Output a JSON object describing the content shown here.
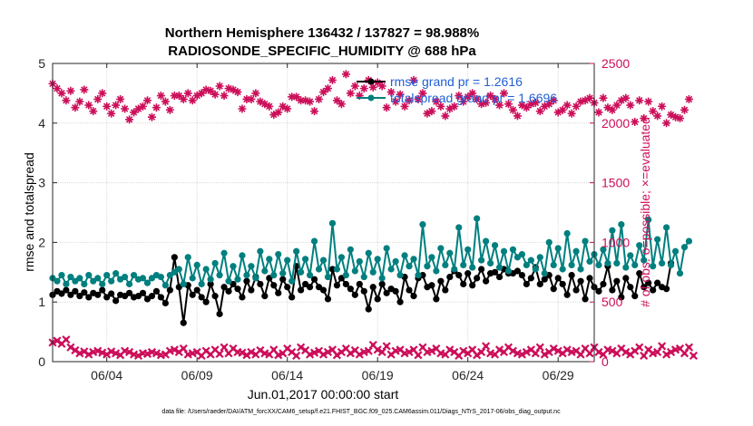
{
  "chart_data": {
    "type": "line",
    "title": "Northern Hemisphere 136432 / 137827 = 98.988%",
    "subtitle": "RADIOSONDE_SPECIFIC_HUMIDITY @ 688 hPa",
    "xlabel": "Jun.01,2017 00:00:00 start",
    "ylabel": "rmse and totalspread",
    "ylabel_right": "# of obs: o=possible; ×=evaluated",
    "footnote": "data file: /Users/raeder/DAI/ATM_forcXX/CAM6_setup/f.e21.FHIST_BGC.f09_025.CAM6assim.011/Diags_NTrS_2017-06/obs_diag_output.nc",
    "x_ticks": [
      {
        "value": 4,
        "label": "06/04"
      },
      {
        "value": 9,
        "label": "06/09"
      },
      {
        "value": 14,
        "label": "06/14"
      },
      {
        "value": 19,
        "label": "06/19"
      },
      {
        "value": 24,
        "label": "06/24"
      },
      {
        "value": 29,
        "label": "06/29"
      }
    ],
    "xlim": [
      1.0,
      31.0
    ],
    "ylim": [
      0,
      5
    ],
    "y_ticks": [
      0,
      1,
      2,
      3,
      4,
      5
    ],
    "ylim_right": [
      0,
      2500
    ],
    "y_ticks_right": [
      0,
      500,
      1000,
      1500,
      2000,
      2500
    ],
    "grid": true,
    "legend_position": "top-right",
    "x_start": 1.0,
    "x_step": 0.25,
    "series": [
      {
        "name": "rmse grand pr = 1.2616",
        "axis": "left",
        "color": "#000000",
        "marker": "circle",
        "values": [
          1.12,
          1.18,
          1.14,
          1.2,
          1.12,
          1.18,
          1.1,
          1.16,
          1.08,
          1.15,
          1.12,
          1.2,
          1.08,
          1.14,
          1.02,
          1.12,
          1.1,
          1.15,
          1.08,
          1.1,
          1.15,
          1.05,
          1.1,
          1.18,
          1.08,
          0.98,
          1.2,
          1.75,
          1.25,
          0.65,
          1.28,
          1.12,
          1.2,
          1.08,
          1.0,
          1.3,
          1.1,
          0.8,
          1.25,
          1.18,
          1.3,
          1.22,
          1.08,
          1.35,
          1.2,
          1.42,
          1.3,
          1.1,
          1.4,
          1.28,
          1.15,
          1.38,
          1.25,
          1.08,
          1.6,
          1.2,
          1.3,
          1.25,
          1.38,
          1.25,
          1.2,
          1.05,
          1.55,
          1.28,
          1.4,
          1.3,
          1.22,
          1.12,
          1.3,
          1.18,
          0.88,
          1.25,
          1.05,
          1.3,
          1.15,
          1.22,
          1.18,
          1.0,
          1.42,
          1.2,
          1.1,
          1.4,
          1.45,
          1.25,
          1.28,
          1.05,
          1.35,
          1.2,
          1.42,
          1.52,
          1.45,
          1.3,
          1.48,
          1.28,
          1.4,
          1.55,
          1.35,
          1.48,
          1.5,
          1.42,
          1.55,
          1.48,
          1.48,
          1.52,
          1.45,
          1.3,
          1.4,
          1.58,
          1.3,
          1.38,
          1.45,
          1.22,
          1.4,
          1.3,
          1.12,
          1.45,
          1.2,
          1.35,
          1.05,
          1.4,
          1.25,
          1.18,
          1.3,
          1.6,
          1.2,
          1.35,
          1.08,
          1.4,
          1.25,
          1.1,
          1.48,
          1.25,
          1.32,
          1.2,
          1.32,
          1.25,
          1.22,
          1.65
        ]
      },
      {
        "name": "totalspread grand pr = 1.6696",
        "axis": "left",
        "color": "#007f7f",
        "marker": "circle",
        "values": [
          1.4,
          1.35,
          1.45,
          1.3,
          1.42,
          1.35,
          1.4,
          1.3,
          1.45,
          1.35,
          1.4,
          1.3,
          1.45,
          1.35,
          1.48,
          1.38,
          1.42,
          1.3,
          1.45,
          1.38,
          1.4,
          1.32,
          1.4,
          1.45,
          1.42,
          1.28,
          1.45,
          1.5,
          1.55,
          1.3,
          1.75,
          1.4,
          1.62,
          1.3,
          1.55,
          1.38,
          1.65,
          1.45,
          1.82,
          1.35,
          1.6,
          1.38,
          1.78,
          1.45,
          1.6,
          1.4,
          1.85,
          1.52,
          1.72,
          1.45,
          1.8,
          1.48,
          1.7,
          1.35,
          1.85,
          1.5,
          1.72,
          1.45,
          2.02,
          1.55,
          1.7,
          1.42,
          2.32,
          1.55,
          1.75,
          1.45,
          1.88,
          1.52,
          1.68,
          1.42,
          1.82,
          1.5,
          1.72,
          1.4,
          1.9,
          1.55,
          1.68,
          1.45,
          1.78,
          1.6,
          1.72,
          1.45,
          2.3,
          1.6,
          1.75,
          1.52,
          1.9,
          1.62,
          1.82,
          1.55,
          2.25,
          1.62,
          1.88,
          1.58,
          2.4,
          1.7,
          2.02,
          1.65,
          1.95,
          1.58,
          1.85,
          1.52,
          1.88,
          1.75,
          1.8,
          1.62,
          1.7,
          1.55,
          1.75,
          1.48,
          2.0,
          1.62,
          1.9,
          1.55,
          2.15,
          1.62,
          1.85,
          1.55,
          2.02,
          1.68,
          1.8,
          1.62,
          1.88,
          1.65,
          2.2,
          1.65,
          2.3,
          1.58,
          1.78,
          1.62,
          1.95,
          1.7,
          2.38,
          1.6,
          2.05,
          1.65,
          2.25,
          1.62,
          1.85,
          1.48,
          1.92,
          2.02
        ]
      },
      {
        "name": "obs possible",
        "axis": "right",
        "color": "#cc0f5a",
        "marker": "asterisk",
        "values": [
          2330,
          2290,
          2250,
          2190,
          2270,
          2130,
          2180,
          2280,
          2150,
          2100,
          2200,
          2250,
          2140,
          2080,
          2150,
          2200,
          2120,
          2030,
          2090,
          2120,
          2140,
          2190,
          2050,
          2130,
          2230,
          2180,
          2110,
          2230,
          2230,
          2200,
          2250,
          2190,
          2230,
          2250,
          2280,
          2270,
          2240,
          2310,
          2230,
          2290,
          2280,
          2260,
          2120,
          2200,
          2200,
          2250,
          2180,
          2160,
          2140,
          2070,
          2090,
          2140,
          2120,
          2220,
          2220,
          2190,
          2190,
          2180,
          2100,
          2200,
          2260,
          2290,
          2360,
          2190,
          2160,
          2410,
          2250,
          2310,
          2230,
          2290,
          2360,
          2300,
          2340,
          2310,
          2130,
          2260,
          2180,
          2240,
          2140,
          2190,
          2360,
          2200,
          2250,
          2080,
          2100,
          2180,
          2140,
          2060,
          2120,
          2140,
          2230,
          2180,
          2220,
          2250,
          2200,
          2160,
          2170,
          2230,
          2200,
          2150,
          2250,
          2160,
          2110,
          2060,
          2150,
          2130,
          2160,
          2170,
          2100,
          2140,
          2160,
          2190,
          2090,
          2110,
          2150,
          2080,
          2140,
          2180,
          2190,
          2210,
          2170,
          2090,
          2210,
          2130,
          2110,
          2150,
          2190,
          2210,
          2150,
          2010,
          2190,
          2040,
          2180,
          2100,
          2060,
          2140,
          2000,
          2070,
          2050,
          2040,
          2110,
          2200
        ]
      },
      {
        "name": "obs evaluated",
        "axis": "right",
        "color": "#cc0f5a",
        "marker": "x",
        "values": [
          160,
          175,
          150,
          185,
          120,
          95,
          70,
          85,
          60,
          80,
          90,
          75,
          60,
          85,
          70,
          55,
          90,
          80,
          60,
          50,
          70,
          65,
          80,
          70,
          55,
          60,
          90,
          100,
          80,
          110,
          60,
          70,
          80,
          50,
          90,
          60,
          100,
          65,
          120,
          70,
          110,
          80,
          75,
          55,
          80,
          60,
          95,
          70,
          60,
          100,
          55,
          70,
          110,
          80,
          50,
          120,
          95,
          60,
          75,
          90,
          60,
          80,
          100,
          55,
          80,
          110,
          70,
          95,
          60,
          80,
          90,
          140,
          100,
          80,
          130,
          60,
          90,
          100,
          70,
          80,
          100,
          55,
          120,
          80,
          90,
          110,
          70,
          60,
          100,
          80,
          50,
          90,
          70,
          100,
          55,
          80,
          130,
          70,
          60,
          100,
          80,
          120,
          90,
          70,
          60,
          80,
          100,
          70,
          120,
          60,
          80,
          110,
          90,
          70,
          100,
          80,
          90,
          60,
          110,
          70,
          120,
          80,
          60,
          100,
          90,
          70,
          110,
          80,
          60,
          90,
          120,
          50,
          100,
          70,
          80,
          130,
          60,
          80,
          100,
          110,
          70,
          120,
          50
        ]
      }
    ]
  }
}
